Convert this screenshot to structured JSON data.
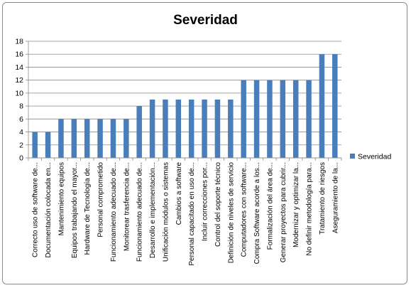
{
  "chart_data": {
    "type": "bar",
    "title": "Severidad",
    "xlabel": "",
    "ylabel": "",
    "ylim": [
      0,
      18
    ],
    "y_ticks": [
      0,
      2,
      4,
      6,
      8,
      10,
      12,
      14,
      16,
      18
    ],
    "grid": true,
    "legend_position": "right",
    "bar_color": "#4a7ebb",
    "categories": [
      "Correcto uso de software de...",
      "Documentación colocada en...",
      "Mantenimiento equipos",
      "Equipos trabajando el mayor...",
      "Hardware de Tecnología de...",
      "Personal comprometido",
      "Funcionamiento adecuado de...",
      "Monitorear trasferencia de...",
      "Funcionamiento adecuado de...",
      "Desarrollo e implementación...",
      "Unificación módulos o sistemas",
      "Cambios a software",
      "Personal capacitado en uso de...",
      "Incluir correcciones por...",
      "Control del soporte técnico",
      "Definición de niveles de servicio",
      "Computadores con software...",
      "Compra Software acorde a los...",
      "Formalización del área de...",
      "Generar proyectos para cubrir...",
      "Modernizar y optimizar la...",
      "No definir metodología para...",
      "Tratamiento de riesgos",
      "Aseguramiento de la..."
    ],
    "series": [
      {
        "name": "Severidad",
        "values": [
          4,
          4,
          6,
          6,
          6,
          6,
          6,
          6,
          8,
          9,
          9,
          9,
          9,
          9,
          9,
          9,
          12,
          12,
          12,
          12,
          12,
          12,
          16,
          16
        ]
      }
    ]
  }
}
